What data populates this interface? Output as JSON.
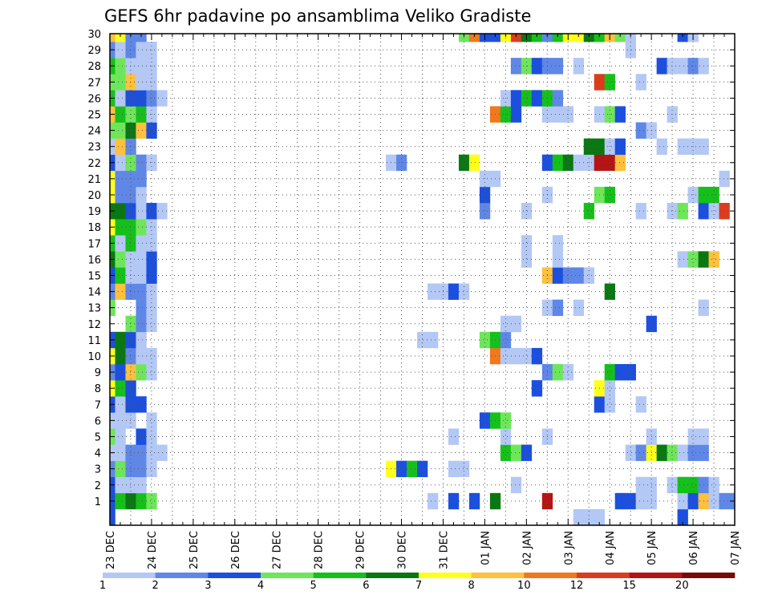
{
  "chart_data": {
    "type": "heatmap",
    "title": "GEFS 6hr padavine po ansamblima Veliko Gradiste",
    "xlabel": "",
    "ylabel": "",
    "x_tick_labels": [
      "23 DEC",
      "24 DEC",
      "25 DEC",
      "26 DEC",
      "27 DEC",
      "28 DEC",
      "29 DEC",
      "30 DEC",
      "31 DEC",
      "01 JAN",
      "02 JAN",
      "03 JAN",
      "04 JAN",
      "05 JAN",
      "06 JAN",
      "07 JAN"
    ],
    "y_tick_labels": [
      "1",
      "2",
      "3",
      "4",
      "5",
      "6",
      "7",
      "8",
      "9",
      "10",
      "11",
      "12",
      "13",
      "14",
      "15",
      "16",
      "17",
      "18",
      "19",
      "20",
      "21",
      "22",
      "23",
      "24",
      "25",
      "26",
      "27",
      "28",
      "29",
      "30"
    ],
    "x_range_steps": [
      0,
      60
    ],
    "y_range": [
      0,
      30
    ],
    "grid": true,
    "colorbar": {
      "labels": [
        "1",
        "2",
        "3",
        "4",
        "5",
        "6",
        "7",
        "8",
        "10",
        "12",
        "15",
        "20"
      ],
      "colors": [
        "#b4c8f5",
        "#5f87e8",
        "#1c4fde",
        "#6ee65a",
        "#16c01a",
        "#0a7812",
        "#ffff1e",
        "#ffc03c",
        "#f0781e",
        "#dc3c1e",
        "#b41414",
        "#780a0a"
      ]
    },
    "units_note": "each cell = one 6-hour step (4 steps per day) for one ensemble member; value = color class index 1..12",
    "cells": {
      "30": [
        [
          0,
          8
        ],
        [
          1,
          7
        ],
        [
          2,
          2
        ],
        [
          3,
          2
        ],
        [
          34,
          4
        ],
        [
          35,
          9
        ],
        [
          36,
          3
        ],
        [
          37,
          3
        ],
        [
          38,
          7
        ],
        [
          39,
          10
        ],
        [
          40,
          6
        ],
        [
          41,
          5
        ],
        [
          42,
          2
        ],
        [
          43,
          5
        ],
        [
          44,
          7
        ],
        [
          45,
          7
        ],
        [
          46,
          6
        ],
        [
          47,
          5
        ],
        [
          48,
          8
        ],
        [
          49,
          4
        ],
        [
          50,
          1
        ],
        [
          55,
          3
        ],
        [
          56,
          1
        ]
      ],
      "29": [
        [
          0,
          2
        ],
        [
          1,
          1
        ],
        [
          2,
          2
        ],
        [
          3,
          1
        ],
        [
          4,
          1
        ],
        [
          50,
          1
        ]
      ],
      "28": [
        [
          0,
          5
        ],
        [
          1,
          4
        ],
        [
          2,
          1
        ],
        [
          3,
          1
        ],
        [
          4,
          1
        ],
        [
          39,
          2
        ],
        [
          40,
          4
        ],
        [
          41,
          3
        ],
        [
          42,
          2
        ],
        [
          43,
          2
        ],
        [
          45,
          1
        ],
        [
          53,
          3
        ],
        [
          54,
          1
        ],
        [
          55,
          1
        ],
        [
          56,
          2
        ],
        [
          57,
          1
        ]
      ],
      "27": [
        [
          0,
          4
        ],
        [
          1,
          4
        ],
        [
          2,
          8
        ],
        [
          3,
          1
        ],
        [
          4,
          1
        ],
        [
          47,
          10
        ],
        [
          48,
          5
        ],
        [
          51,
          1
        ]
      ],
      "26": [
        [
          0,
          5
        ],
        [
          1,
          1
        ],
        [
          2,
          3
        ],
        [
          3,
          3
        ],
        [
          4,
          2
        ],
        [
          5,
          1
        ],
        [
          38,
          1
        ],
        [
          39,
          3
        ],
        [
          40,
          5
        ],
        [
          41,
          3
        ],
        [
          42,
          5
        ],
        [
          43,
          2
        ]
      ],
      "25": [
        [
          0,
          8
        ],
        [
          1,
          5
        ],
        [
          2,
          4
        ],
        [
          3,
          5
        ],
        [
          4,
          1
        ],
        [
          37,
          9
        ],
        [
          38,
          5
        ],
        [
          39,
          3
        ],
        [
          42,
          1
        ],
        [
          43,
          1
        ],
        [
          44,
          1
        ],
        [
          47,
          1
        ],
        [
          48,
          4
        ],
        [
          49,
          3
        ],
        [
          54,
          1
        ]
      ],
      "24": [
        [
          0,
          4
        ],
        [
          1,
          4
        ],
        [
          2,
          6
        ],
        [
          3,
          8
        ],
        [
          4,
          3
        ],
        [
          51,
          2
        ],
        [
          52,
          1
        ]
      ],
      "23": [
        [
          0,
          1
        ],
        [
          1,
          8
        ],
        [
          2,
          2
        ],
        [
          46,
          6
        ],
        [
          47,
          6
        ],
        [
          48,
          1
        ],
        [
          49,
          3
        ],
        [
          53,
          1
        ],
        [
          55,
          1
        ],
        [
          56,
          1
        ],
        [
          57,
          1
        ]
      ],
      "22": [
        [
          0,
          3
        ],
        [
          1,
          1
        ],
        [
          2,
          4
        ],
        [
          3,
          2
        ],
        [
          4,
          1
        ],
        [
          27,
          1
        ],
        [
          28,
          2
        ],
        [
          34,
          6
        ],
        [
          35,
          7
        ],
        [
          42,
          3
        ],
        [
          43,
          5
        ],
        [
          44,
          6
        ],
        [
          45,
          1
        ],
        [
          46,
          1
        ],
        [
          47,
          11
        ],
        [
          48,
          11
        ],
        [
          49,
          8
        ]
      ],
      "21": [
        [
          0,
          7
        ],
        [
          1,
          2
        ],
        [
          2,
          2
        ],
        [
          3,
          2
        ],
        [
          36,
          1
        ],
        [
          37,
          1
        ],
        [
          59,
          1
        ]
      ],
      "20": [
        [
          0,
          7
        ],
        [
          1,
          2
        ],
        [
          2,
          2
        ],
        [
          3,
          1
        ],
        [
          36,
          3
        ],
        [
          42,
          1
        ],
        [
          47,
          4
        ],
        [
          48,
          5
        ],
        [
          56,
          1
        ],
        [
          57,
          5
        ],
        [
          58,
          5
        ]
      ],
      "19": [
        [
          0,
          6
        ],
        [
          1,
          6
        ],
        [
          2,
          3
        ],
        [
          3,
          1
        ],
        [
          4,
          3
        ],
        [
          5,
          1
        ],
        [
          36,
          2
        ],
        [
          40,
          1
        ],
        [
          46,
          5
        ],
        [
          51,
          1
        ],
        [
          54,
          1
        ],
        [
          55,
          4
        ],
        [
          57,
          3
        ],
        [
          58,
          1
        ],
        [
          59,
          10
        ]
      ],
      "18": [
        [
          0,
          7
        ],
        [
          1,
          5
        ],
        [
          2,
          5
        ],
        [
          3,
          4
        ],
        [
          4,
          1
        ]
      ],
      "17": [
        [
          0,
          5
        ],
        [
          1,
          1
        ],
        [
          2,
          5
        ],
        [
          3,
          1
        ],
        [
          4,
          1
        ],
        [
          40,
          1
        ],
        [
          43,
          1
        ]
      ],
      "16": [
        [
          0,
          6
        ],
        [
          1,
          4
        ],
        [
          2,
          1
        ],
        [
          3,
          1
        ],
        [
          4,
          3
        ],
        [
          40,
          1
        ],
        [
          43,
          1
        ],
        [
          55,
          1
        ],
        [
          56,
          4
        ],
        [
          57,
          6
        ],
        [
          58,
          8
        ]
      ],
      "15": [
        [
          0,
          3
        ],
        [
          1,
          5
        ],
        [
          2,
          1
        ],
        [
          3,
          1
        ],
        [
          4,
          3
        ],
        [
          42,
          8
        ],
        [
          43,
          3
        ],
        [
          44,
          2
        ],
        [
          45,
          2
        ],
        [
          46,
          1
        ]
      ],
      "14": [
        [
          0,
          2
        ],
        [
          1,
          8
        ],
        [
          2,
          2
        ],
        [
          3,
          2
        ],
        [
          4,
          1
        ],
        [
          31,
          1
        ],
        [
          32,
          1
        ],
        [
          33,
          3
        ],
        [
          34,
          1
        ],
        [
          48,
          6
        ]
      ],
      "13": [
        [
          0,
          4
        ],
        [
          3,
          2
        ],
        [
          4,
          1
        ],
        [
          42,
          1
        ],
        [
          43,
          2
        ],
        [
          45,
          1
        ],
        [
          57,
          1
        ]
      ],
      "12": [
        [
          2,
          4
        ],
        [
          3,
          2
        ],
        [
          4,
          1
        ],
        [
          38,
          1
        ],
        [
          39,
          1
        ],
        [
          52,
          3
        ]
      ],
      "11": [
        [
          0,
          3
        ],
        [
          1,
          6
        ],
        [
          2,
          3
        ],
        [
          3,
          1
        ],
        [
          30,
          1
        ],
        [
          31,
          1
        ],
        [
          36,
          4
        ],
        [
          37,
          5
        ],
        [
          38,
          2
        ]
      ],
      "10": [
        [
          0,
          7
        ],
        [
          1,
          6
        ],
        [
          2,
          2
        ],
        [
          3,
          1
        ],
        [
          4,
          1
        ],
        [
          37,
          9
        ],
        [
          38,
          1
        ],
        [
          39,
          1
        ],
        [
          40,
          1
        ],
        [
          41,
          3
        ]
      ],
      "9": [
        [
          0,
          2
        ],
        [
          1,
          3
        ],
        [
          2,
          8
        ],
        [
          3,
          4
        ],
        [
          4,
          1
        ],
        [
          42,
          2
        ],
        [
          43,
          4
        ],
        [
          44,
          1
        ],
        [
          48,
          5
        ],
        [
          49,
          3
        ],
        [
          50,
          3
        ]
      ],
      "8": [
        [
          0,
          7
        ],
        [
          1,
          5
        ],
        [
          2,
          3
        ],
        [
          41,
          3
        ],
        [
          47,
          7
        ],
        [
          48,
          1
        ]
      ],
      "7": [
        [
          0,
          3
        ],
        [
          1,
          1
        ],
        [
          2,
          3
        ],
        [
          3,
          3
        ],
        [
          47,
          3
        ],
        [
          48,
          1
        ],
        [
          51,
          1
        ]
      ],
      "6": [
        [
          0,
          1
        ],
        [
          1,
          1
        ],
        [
          2,
          1
        ],
        [
          4,
          1
        ],
        [
          36,
          3
        ],
        [
          37,
          5
        ],
        [
          38,
          4
        ]
      ],
      "5": [
        [
          0,
          4
        ],
        [
          1,
          1
        ],
        [
          3,
          3
        ],
        [
          4,
          1
        ],
        [
          33,
          1
        ],
        [
          38,
          1
        ],
        [
          42,
          1
        ],
        [
          52,
          1
        ],
        [
          56,
          1
        ],
        [
          57,
          1
        ]
      ],
      "4": [
        [
          0,
          1
        ],
        [
          1,
          1
        ],
        [
          2,
          2
        ],
        [
          3,
          2
        ],
        [
          4,
          1
        ],
        [
          5,
          1
        ],
        [
          38,
          5
        ],
        [
          39,
          4
        ],
        [
          40,
          3
        ],
        [
          50,
          1
        ],
        [
          51,
          2
        ],
        [
          52,
          7
        ],
        [
          53,
          6
        ],
        [
          54,
          4
        ],
        [
          55,
          1
        ],
        [
          56,
          2
        ],
        [
          57,
          2
        ]
      ],
      "3": [
        [
          0,
          2
        ],
        [
          1,
          4
        ],
        [
          2,
          2
        ],
        [
          3,
          2
        ],
        [
          4,
          1
        ],
        [
          27,
          7
        ],
        [
          28,
          3
        ],
        [
          29,
          5
        ],
        [
          30,
          3
        ],
        [
          33,
          1
        ],
        [
          34,
          1
        ]
      ],
      "2": [
        [
          0,
          3
        ],
        [
          1,
          1
        ],
        [
          2,
          1
        ],
        [
          3,
          1
        ],
        [
          39,
          1
        ],
        [
          51,
          1
        ],
        [
          52,
          1
        ],
        [
          54,
          1
        ],
        [
          55,
          5
        ],
        [
          56,
          5
        ],
        [
          57,
          2
        ],
        [
          58,
          1
        ]
      ],
      "1": [
        [
          0,
          3
        ],
        [
          1,
          5
        ],
        [
          2,
          6
        ],
        [
          3,
          5
        ],
        [
          4,
          4
        ],
        [
          31,
          1
        ],
        [
          33,
          3
        ],
        [
          35,
          3
        ],
        [
          37,
          6
        ],
        [
          42,
          11
        ],
        [
          49,
          3
        ],
        [
          50,
          3
        ],
        [
          51,
          1
        ],
        [
          52,
          1
        ],
        [
          55,
          1
        ],
        [
          56,
          3
        ],
        [
          57,
          8
        ],
        [
          58,
          1
        ],
        [
          59,
          2
        ],
        [
          60,
          2
        ]
      ],
      "0": [
        [
          0,
          3
        ],
        [
          45,
          1
        ],
        [
          46,
          1
        ],
        [
          47,
          1
        ],
        [
          55,
          3
        ]
      ]
    }
  }
}
